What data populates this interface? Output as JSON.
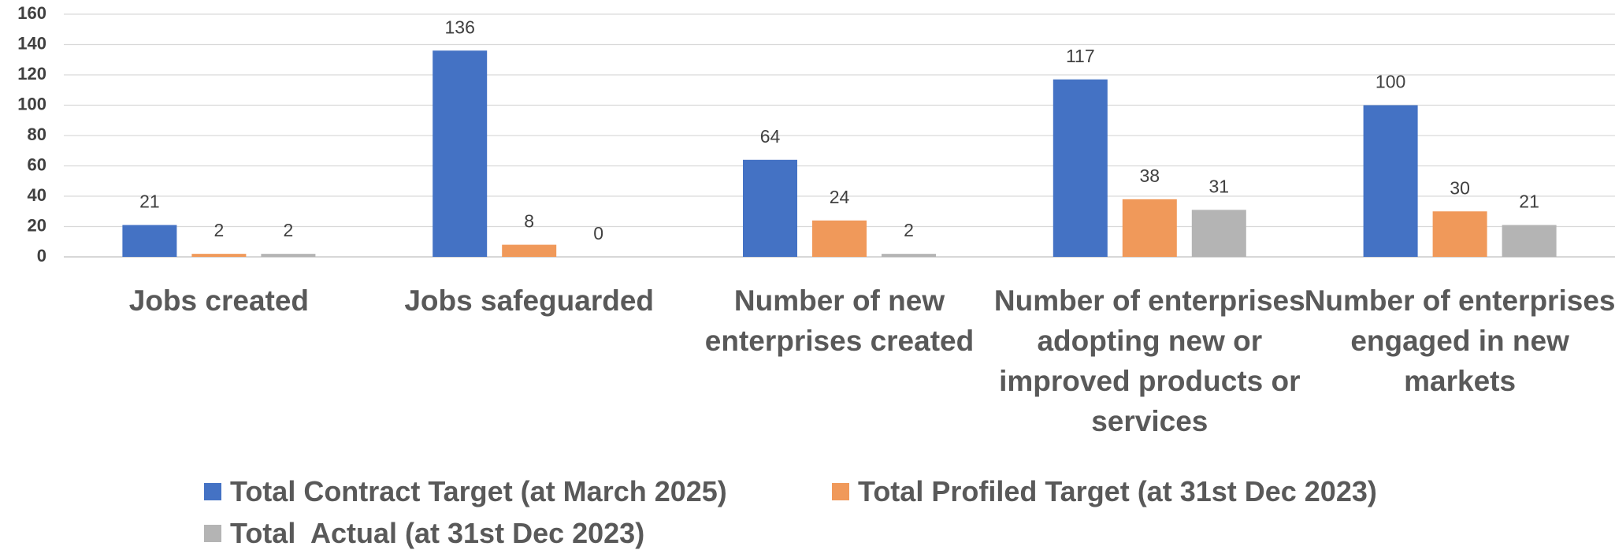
{
  "chart_data": {
    "type": "bar",
    "categories": [
      "Jobs created",
      "Jobs safeguarded",
      "Number of new enterprises created",
      "Number of enterprises adopting new or improved products or services",
      "Number of enterprises engaged in new markets"
    ],
    "series": [
      {
        "name": "Total Contract Target (at March 2025)",
        "color": "#4472c4",
        "values": [
          21,
          136,
          64,
          117,
          100
        ]
      },
      {
        "name": "Total Profiled Target (at 31st Dec 2023)",
        "color": "#f0995a",
        "values": [
          2,
          8,
          24,
          38,
          30
        ]
      },
      {
        "name": "Total  Actual (at 31st Dec 2023)",
        "color": "#b4b4b4",
        "values": [
          2,
          0,
          2,
          31,
          21
        ]
      }
    ],
    "ylim": [
      0,
      160
    ],
    "yticks": [
      0,
      20,
      40,
      60,
      80,
      100,
      120,
      140,
      160
    ],
    "grid": true,
    "legend": "bottom"
  }
}
